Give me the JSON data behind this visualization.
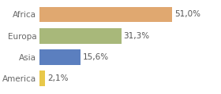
{
  "categories": [
    "America",
    "Asia",
    "Europa",
    "Africa"
  ],
  "values": [
    2.1,
    15.6,
    31.3,
    51.0
  ],
  "labels": [
    "2,1%",
    "15,6%",
    "31,3%",
    "51,0%"
  ],
  "bar_colors": [
    "#e8c84a",
    "#5b7fbf",
    "#a8b87a",
    "#e0a870"
  ],
  "background_color": "#ffffff",
  "xlim": [
    0,
    68
  ],
  "label_fontsize": 7.5,
  "tick_fontsize": 7.5
}
